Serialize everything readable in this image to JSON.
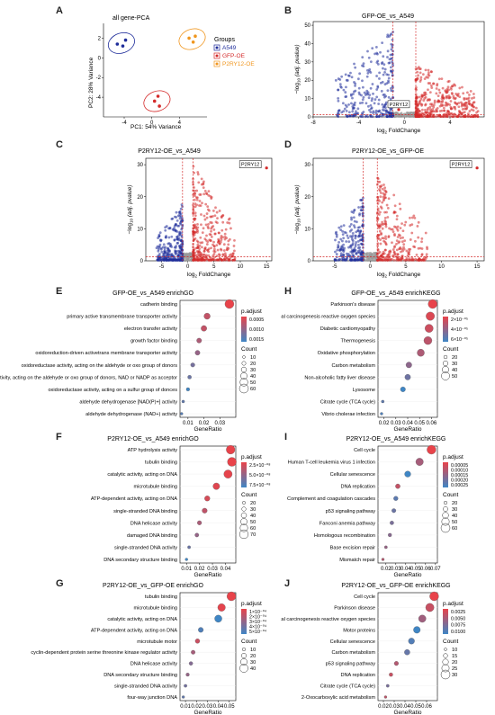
{
  "colors": {
    "blue": "#1f2d9a",
    "red": "#d42a2a",
    "orange": "#f0961e",
    "grey": "#9a9a9a",
    "padj_high": "#e8434a",
    "padj_low": "#3f86c5"
  },
  "panels": {
    "A": {
      "label": "A",
      "title": "all gene-PCA",
      "xlabel": "PC1: 54%  Variance",
      "ylabel": "PC2: 28%  Variance",
      "legend_title": "Groups",
      "legend": [
        "A549",
        "GFP-OE",
        "P2RY12-OE"
      ]
    },
    "B": {
      "label": "B",
      "title": "GFP-OE_vs_A549",
      "gene": "P2RY12"
    },
    "C": {
      "label": "C",
      "title": "P2RY12-OE_vs_A549",
      "gene": "P2RY12"
    },
    "D": {
      "label": "D",
      "title": "P2RY12-OE_vs_GFP-OE",
      "gene": "P2RY12"
    },
    "E": {
      "label": "E",
      "title": "GFP-OE_vs_A549 enrichGO",
      "xlabel": "GeneRatio",
      "legend_padj": "p.adjust",
      "legend_count": "Count"
    },
    "F": {
      "label": "F",
      "title": "P2RY12-OE_vs_A549 enrichGO",
      "xlabel": "GeneRatio",
      "legend_padj": "p.adjust",
      "legend_count": "Count"
    },
    "G": {
      "label": "G",
      "title": "P2RY12-OE_vs_GFP-OE enrichGO",
      "xlabel": "GeneRatio",
      "legend_padj": "p.adjust",
      "legend_count": "Count"
    },
    "H": {
      "label": "H",
      "title": "GFP-OE_vs_A549 enrichKEGG",
      "xlabel": "GeneRatio",
      "legend_padj": "p.adjust",
      "legend_count": "Count"
    },
    "I": {
      "label": "I",
      "title": "P2RY12-OE_vs_A549 enrichKEGG",
      "xlabel": "GeneRatio",
      "legend_padj": "p.adjust",
      "legend_count": "Count"
    },
    "J": {
      "label": "J",
      "title": "P2RY12-OE_vs_GFP-OE enrichKEGG",
      "xlabel": "GeneRatio",
      "legend_padj": "p.adjust",
      "legend_count": "Count"
    }
  },
  "chart_data": [
    {
      "id": "A",
      "type": "scatter",
      "title": "all gene-PCA",
      "xlabel": "PC1: 54%  Variance",
      "ylabel": "PC2: 28%  Variance",
      "xlim": [
        -7,
        8
      ],
      "ylim": [
        -6,
        3.5
      ],
      "xticks": [
        -4,
        0,
        4
      ],
      "yticks": [
        -4,
        -2,
        0,
        2
      ],
      "legend": {
        "title": "Groups",
        "placement": "right"
      },
      "series": [
        {
          "name": "A549",
          "color": "#1f2d9a",
          "points": [
            [
              -5.0,
              1.4
            ],
            [
              -4.2,
              1.2
            ],
            [
              -3.8,
              1.8
            ]
          ]
        },
        {
          "name": "GFP-OE",
          "color": "#d42a2a",
          "points": [
            [
              0.4,
              -4.4
            ],
            [
              0.9,
              -3.9
            ],
            [
              1.1,
              -4.9
            ]
          ]
        },
        {
          "name": "P2RY12-OE",
          "color": "#f0961e",
          "points": [
            [
              5.4,
              2.0
            ],
            [
              6.0,
              1.6
            ],
            [
              6.3,
              2.2
            ]
          ]
        }
      ]
    },
    {
      "id": "B",
      "type": "scatter",
      "subtype": "volcano",
      "title": "GFP-OE_vs_A549",
      "xlabel": "log2 FoldChange",
      "ylabel": "-log10 (adj. pvalue)",
      "xlim": [
        -8,
        7
      ],
      "ylim": [
        0,
        52
      ],
      "xticks": [
        -8,
        -4,
        0,
        4
      ],
      "yticks": [
        0,
        10,
        20,
        30,
        40,
        50
      ],
      "threshold_x": [
        -1,
        1
      ],
      "threshold_y": 1.3,
      "highlight": {
        "gene": "P2RY12",
        "x": -0.5,
        "y": 4
      },
      "up": {
        "n": 420,
        "xmax": 6.5,
        "ymax": 30
      },
      "down": {
        "n": 300,
        "xmin": -6,
        "ymax": 50
      }
    },
    {
      "id": "C",
      "type": "scatter",
      "subtype": "volcano",
      "title": "P2RY12-OE_vs_A549",
      "xlabel": "log2 FoldChange",
      "ylabel": "-log10 (adj. pvalue)",
      "xlim": [
        -8,
        16
      ],
      "ylim": [
        0,
        32
      ],
      "xticks": [
        -5,
        0,
        5,
        10,
        15
      ],
      "yticks": [
        0,
        10,
        20,
        30
      ],
      "threshold_x": [
        -1,
        1
      ],
      "threshold_y": 1.3,
      "highlight": {
        "gene": "P2RY12",
        "x": 15,
        "y": 29
      },
      "up": {
        "n": 360,
        "xmax": 9,
        "ymax": 30
      },
      "down": {
        "n": 300,
        "xmin": -6,
        "ymax": 18
      }
    },
    {
      "id": "D",
      "type": "scatter",
      "subtype": "volcano",
      "title": "P2RY12-OE_vs_GFP-OE",
      "xlabel": "log2 FoldChange",
      "ylabel": "-log10 (adj. pvalue)",
      "xlim": [
        -8,
        16
      ],
      "ylim": [
        0,
        32
      ],
      "xticks": [
        -5,
        0,
        5,
        10,
        15
      ],
      "yticks": [
        0,
        10,
        20,
        30
      ],
      "threshold_x": [
        -1,
        1
      ],
      "threshold_y": 1.3,
      "highlight": {
        "gene": "P2RY12",
        "x": 15,
        "y": 29
      },
      "up": {
        "n": 300,
        "xmax": 8,
        "ymax": 26
      },
      "down": {
        "n": 240,
        "xmin": -5,
        "ymax": 20
      }
    },
    {
      "id": "E",
      "type": "scatter",
      "subtype": "dotplot",
      "title": "GFP-OE_vs_A549 enrichGO",
      "xlabel": "GeneRatio",
      "xlim": [
        0.005,
        0.04
      ],
      "xticks": [
        0.01,
        0.02,
        0.03
      ],
      "padj_ticks": [
        "0.0005",
        "0.0010",
        "0.0015"
      ],
      "count_ticks": [
        "10",
        "20",
        "30",
        "40",
        "50",
        "60"
      ],
      "terms": [
        {
          "label": "cadherin binding",
          "x": 0.036,
          "count": 60,
          "padj": 5e-05
        },
        {
          "label": "primary active transmembrane transporter activity",
          "x": 0.022,
          "count": 38,
          "padj": 0.0004
        },
        {
          "label": "electron transfer activity",
          "x": 0.02,
          "count": 34,
          "padj": 0.0004
        },
        {
          "label": "growth factor binding",
          "x": 0.017,
          "count": 28,
          "padj": 0.0006
        },
        {
          "label": "oxidoreduction-driven activetrans membrane transporter activity",
          "x": 0.016,
          "count": 27,
          "padj": 0.0008
        },
        {
          "label": "oxidoreductase activity, acting on the aldehyde or oxo group of donors",
          "x": 0.013,
          "count": 22,
          "padj": 0.0011
        },
        {
          "label": "oxidoreductase activity, acting on the aldehyde or oxo group of donors, NAD or NADP as acceptor",
          "x": 0.011,
          "count": 18,
          "padj": 0.0012
        },
        {
          "label": "oxidoreductase activity, acting on a sulfur group of donces",
          "x": 0.01,
          "count": 16,
          "padj": 0.0016
        },
        {
          "label": "aldehyde dehydrogenase [NAD(P)+] activity",
          "x": 0.007,
          "count": 11,
          "padj": 0.0013
        },
        {
          "label": "aldehyde dehydrogenase (NAD+) activity",
          "x": 0.006,
          "count": 10,
          "padj": 0.0014
        }
      ]
    },
    {
      "id": "F",
      "type": "scatter",
      "subtype": "dotplot",
      "title": "P2RY12-OE_vs_A549 enrichGO",
      "xlabel": "GeneRatio",
      "xlim": [
        0.005,
        0.048
      ],
      "xticks": [
        0.01,
        0.02,
        0.03,
        0.04
      ],
      "padj_ticks": [
        "2.5×10⁻⁰⁸",
        "5.0×10⁻⁰⁸",
        "7.5×10⁻⁰⁸"
      ],
      "count_ticks": [
        "20",
        "30",
        "40",
        "50",
        "60",
        "70"
      ],
      "terms": [
        {
          "label": "ATP hydrolysis activity",
          "x": 0.044,
          "count": 70,
          "padj": 1e-09
        },
        {
          "label": "tubulin binding",
          "x": 0.045,
          "count": 72,
          "padj": 1e-09
        },
        {
          "label": "catalytic activity, acting on DNA",
          "x": 0.042,
          "count": 66,
          "padj": 2e-09
        },
        {
          "label": "microtubule binding",
          "x": 0.033,
          "count": 52,
          "padj": 5e-09
        },
        {
          "label": "ATP-dependent activity, acting on DNA",
          "x": 0.026,
          "count": 40,
          "padj": 1e-08
        },
        {
          "label": "single-stranded DNA binding",
          "x": 0.024,
          "count": 38,
          "padj": 2e-08
        },
        {
          "label": "DNA helicase activity",
          "x": 0.02,
          "count": 31,
          "padj": 3e-08
        },
        {
          "label": "damaged DNA binding",
          "x": 0.018,
          "count": 28,
          "padj": 4e-08
        },
        {
          "label": "single-stranded DNA activity",
          "x": 0.012,
          "count": 20,
          "padj": 6e-08
        },
        {
          "label": "DNA secondary structure binding",
          "x": 0.01,
          "count": 17,
          "padj": 8e-08
        }
      ]
    },
    {
      "id": "G",
      "type": "scatter",
      "subtype": "dotplot",
      "title": "P2RY12-OE_vs_GFP-OE enrichGO",
      "xlabel": "GeneRatio",
      "xlim": [
        0.005,
        0.056
      ],
      "xticks": [
        0.01,
        0.02,
        0.03,
        0.04,
        0.05
      ],
      "padj_ticks": [
        "1×10⁻⁰⁴",
        "2×10⁻⁰⁴",
        "3×10⁻⁰⁴",
        "4×10⁻⁰⁴",
        "5×10⁻⁰⁴"
      ],
      "count_ticks": [
        "10",
        "20",
        "30",
        "40"
      ],
      "terms": [
        {
          "label": "tubulin binding",
          "x": 0.052,
          "count": 44,
          "padj": 1e-05
        },
        {
          "label": "microtubule binding",
          "x": 0.043,
          "count": 36,
          "padj": 2e-05
        },
        {
          "label": "catalytic activity, acting on DNA",
          "x": 0.04,
          "count": 34,
          "padj": 0.0005
        },
        {
          "label": "ATP-dependent activity, acting on DNA",
          "x": 0.024,
          "count": 21,
          "padj": 0.00045
        },
        {
          "label": "microtubule motor",
          "x": 0.021,
          "count": 18,
          "padj": 0.0001
        },
        {
          "label": "cyclin-dependent protein serine threonine kinase regulator activity",
          "x": 0.017,
          "count": 15,
          "padj": 0.0002
        },
        {
          "label": "DNA helicase activity",
          "x": 0.015,
          "count": 13,
          "padj": 0.0003
        },
        {
          "label": "DNA secondary structure binding",
          "x": 0.012,
          "count": 11,
          "padj": 0.00025
        },
        {
          "label": "single-stranded DNA activity",
          "x": 0.01,
          "count": 9,
          "padj": 0.00035
        },
        {
          "label": "four-way junction DNA",
          "x": 0.008,
          "count": 7,
          "padj": 0.0004
        }
      ]
    },
    {
      "id": "H",
      "type": "scatter",
      "subtype": "dotplot",
      "title": "GFP-OE_vs_A549 enrichKEGG",
      "xlabel": "GeneRatio",
      "xlim": [
        0.015,
        0.065
      ],
      "xticks": [
        0.02,
        0.03,
        0.04,
        0.05,
        0.06
      ],
      "padj_ticks": [
        "2×10⁻⁰⁵",
        "4×10⁻⁰⁵",
        "6×10⁻⁰⁵"
      ],
      "count_ticks": [
        "20",
        "30",
        "40",
        "50"
      ],
      "terms": [
        {
          "label": "Parkinson's disease",
          "x": 0.061,
          "count": 55,
          "padj": 1e-06
        },
        {
          "label": "Chemical carcinogenesis reactive oxygen species",
          "x": 0.059,
          "count": 52,
          "padj": 5e-06
        },
        {
          "label": "Diabetic cardiomyopathy",
          "x": 0.058,
          "count": 50,
          "padj": 1e-05
        },
        {
          "label": "Thermogenesis",
          "x": 0.057,
          "count": 49,
          "padj": 1.5e-05
        },
        {
          "label": "Oxidative phosphorylation",
          "x": 0.051,
          "count": 44,
          "padj": 2e-05
        },
        {
          "label": "Carbon metabolism",
          "x": 0.041,
          "count": 35,
          "padj": 3e-05
        },
        {
          "label": "Non-alcoholic fatty liver disease",
          "x": 0.04,
          "count": 34,
          "padj": 4e-05
        },
        {
          "label": "Lysosome",
          "x": 0.036,
          "count": 30,
          "padj": 5.5e-05
        },
        {
          "label": "Citrate cycle (TCA cycle)",
          "x": 0.019,
          "count": 16,
          "padj": 4.5e-05
        },
        {
          "label": "Vibrio cholerae infection",
          "x": 0.018,
          "count": 15,
          "padj": 5e-05
        }
      ]
    },
    {
      "id": "I",
      "type": "scatter",
      "subtype": "dotplot",
      "title": "P2RY12-OE_vs_A549 enrichKEGG",
      "xlabel": "GeneRatio",
      "xlim": [
        0.012,
        0.072
      ],
      "xticks": [
        0.02,
        0.03,
        0.04,
        0.05,
        0.06,
        0.07
      ],
      "padj_ticks": [
        "0.00005",
        "0.00010",
        "0.00015",
        "0.00020",
        "0.00025"
      ],
      "count_ticks": [
        "20",
        "30",
        "40",
        "50",
        "60"
      ],
      "terms": [
        {
          "label": "Cell cycle",
          "x": 0.066,
          "count": 60,
          "padj": 3e-05
        },
        {
          "label": "Human T-cell leukemia virus 1 infection",
          "x": 0.054,
          "count": 50,
          "padj": 0.00012
        },
        {
          "label": "Cellular senescence",
          "x": 0.042,
          "count": 40,
          "padj": 0.00026
        },
        {
          "label": "DNA replication",
          "x": 0.032,
          "count": 30,
          "padj": 8e-05
        },
        {
          "label": "Complement and coagulation cascades",
          "x": 0.03,
          "count": 28,
          "padj": 0.00022
        },
        {
          "label": "p53 signaling pathway",
          "x": 0.028,
          "count": 26,
          "padj": 0.0002
        },
        {
          "label": "Fanconi anemia pathway",
          "x": 0.026,
          "count": 24,
          "padj": 0.00018
        },
        {
          "label": "Homologous recombination",
          "x": 0.024,
          "count": 22,
          "padj": 0.00016
        },
        {
          "label": "Base excision repair",
          "x": 0.02,
          "count": 18,
          "padj": 0.00014
        },
        {
          "label": "Mismatch repair",
          "x": 0.017,
          "count": 16,
          "padj": 0.0001
        }
      ]
    },
    {
      "id": "J",
      "type": "scatter",
      "subtype": "dotplot",
      "title": "P2RY12-OE_vs_GFP-OE enrichKEGG",
      "xlabel": "GeneRatio",
      "xlim": [
        0.015,
        0.07
      ],
      "xticks": [
        0.02,
        0.03,
        0.04,
        0.05,
        0.06
      ],
      "padj_ticks": [
        "0.0025",
        "0.0050",
        "0.0075",
        "0.0100"
      ],
      "count_ticks": [
        "10",
        "15",
        "20",
        "25",
        "30"
      ],
      "terms": [
        {
          "label": "Cell cycle",
          "x": 0.067,
          "count": 30,
          "padj": 0.0003
        },
        {
          "label": "Parkinson disease",
          "x": 0.063,
          "count": 28,
          "padj": 0.002
        },
        {
          "label": "Chemical carcinogenesis reactive oxygen species",
          "x": 0.056,
          "count": 25,
          "padj": 0.004
        },
        {
          "label": "Motor proteins",
          "x": 0.051,
          "count": 23,
          "padj": 0.009
        },
        {
          "label": "Cellular senescence",
          "x": 0.046,
          "count": 21,
          "padj": 0.008
        },
        {
          "label": "Carbon metabolism",
          "x": 0.042,
          "count": 19,
          "padj": 0.007
        },
        {
          "label": "p53 signaling pathway",
          "x": 0.032,
          "count": 15,
          "padj": 0.003
        },
        {
          "label": "DNA replication",
          "x": 0.027,
          "count": 13,
          "padj": 0.002
        },
        {
          "label": "Citrate cycle (TCA cycle)",
          "x": 0.024,
          "count": 11,
          "padj": 0.006
        },
        {
          "label": "2-Oxocarboxylic acid metabolism",
          "x": 0.022,
          "count": 10,
          "padj": 0.0025
        }
      ]
    }
  ]
}
